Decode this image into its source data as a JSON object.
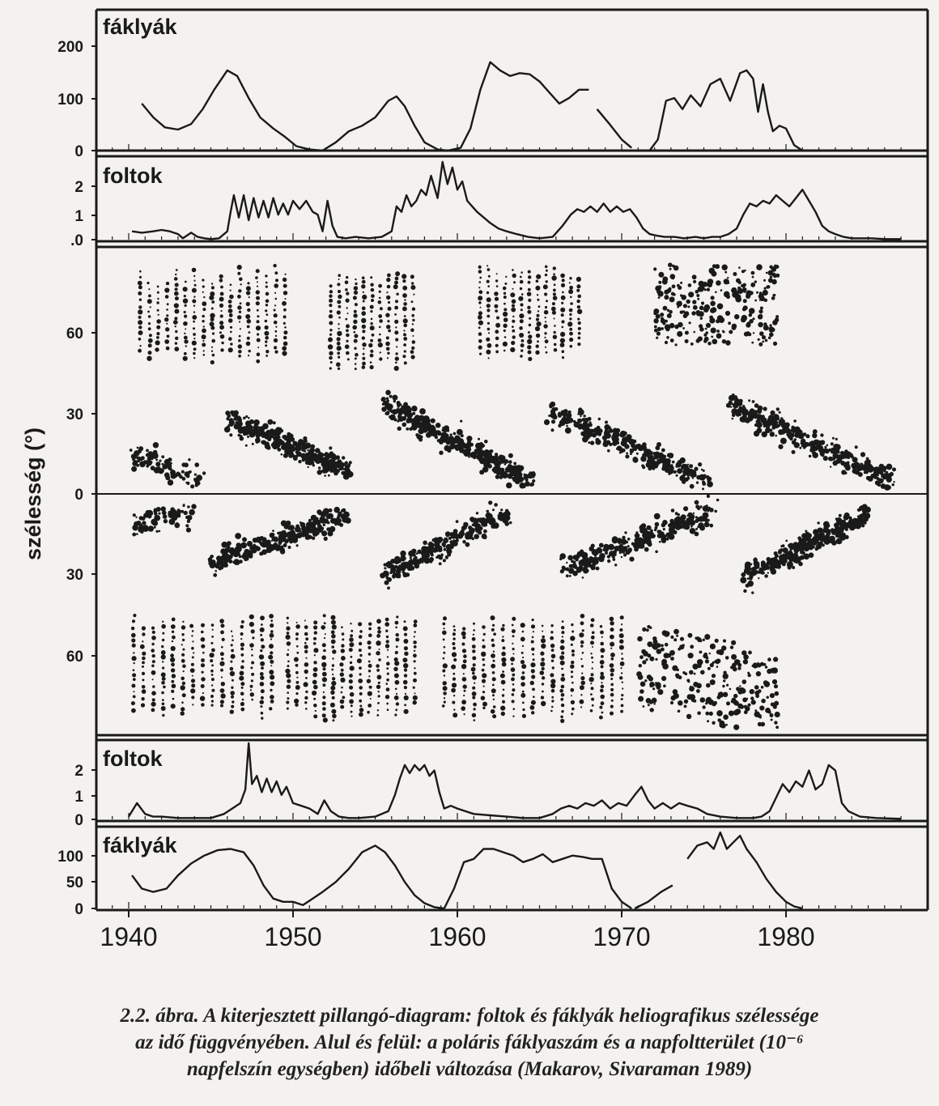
{
  "chart_data": [
    {
      "type": "line",
      "panel": "top",
      "label": "fáklyák",
      "yticks": [
        "200",
        "100",
        "0"
      ],
      "ylim": [
        0,
        240
      ],
      "xlim": [
        1938,
        1988
      ],
      "series": [
        {
          "x": [
            1940.8,
            1941.5,
            1942.2,
            1943,
            1943.8,
            1944.5,
            1945.2,
            1946,
            1946.6,
            1947.3,
            1948,
            1948.8,
            1949.5,
            1950.2,
            1951,
            1951.8
          ],
          "y": [
            85,
            60,
            42,
            38,
            48,
            75,
            110,
            145,
            135,
            95,
            60,
            40,
            25,
            8,
            2,
            0
          ]
        },
        {
          "x": [
            1951.8,
            1952.6,
            1953.4,
            1954.2,
            1955,
            1955.8,
            1956.3,
            1956.8,
            1957.4,
            1958,
            1958.8,
            1959.4
          ],
          "y": [
            0,
            15,
            35,
            45,
            60,
            90,
            98,
            80,
            45,
            15,
            2,
            0
          ]
        },
        {
          "x": [
            1959.4,
            1960.2,
            1960.8,
            1961.4,
            1962,
            1962.6,
            1963.2,
            1963.8,
            1964.4,
            1965,
            1965.6,
            1966.2,
            1966.8,
            1967.4,
            1968
          ],
          "y": [
            0,
            5,
            40,
            110,
            160,
            145,
            135,
            140,
            138,
            125,
            105,
            85,
            95,
            110,
            110
          ]
        },
        {
          "x": [
            1968.5,
            1969.2,
            1970,
            1970.6
          ],
          "y": [
            75,
            50,
            20,
            5
          ]
        },
        {
          "x": [
            1971.7,
            1972.2,
            1972.7,
            1973.2,
            1973.7,
            1974.2,
            1974.8,
            1975.4,
            1976,
            1976.6,
            1977.2,
            1977.6,
            1978,
            1978.3,
            1978.6,
            1978.9,
            1979.2,
            1979.6,
            1980,
            1980.5,
            1981
          ],
          "y": [
            0,
            20,
            90,
            95,
            75,
            100,
            80,
            120,
            130,
            90,
            140,
            145,
            130,
            70,
            120,
            70,
            35,
            45,
            40,
            10,
            0
          ]
        }
      ]
    },
    {
      "type": "line",
      "panel": "upper-middle",
      "label": "foltok",
      "yticks": [
        "2",
        "1",
        ".0"
      ],
      "ylim": [
        0,
        2.8
      ],
      "xlim": [
        1938,
        1988
      ],
      "series": [
        {
          "x": [
            1940.2,
            1940.8,
            1941.5,
            1942,
            1942.5,
            1943,
            1943.3,
            1943.8,
            1944.2,
            1944.6,
            1945,
            1945.5,
            1946,
            1946.2,
            1946.4,
            1946.7,
            1947,
            1947.3,
            1947.6,
            1947.9,
            1948.2,
            1948.5,
            1948.8,
            1949.1,
            1949.4,
            1949.7,
            1950,
            1950.4,
            1950.8,
            1951.2,
            1951.5,
            1951.8,
            1952.1,
            1952.4,
            1952.7,
            1953.2,
            1953.8,
            1954.6,
            1955.4,
            1956,
            1956.3,
            1956.6,
            1956.9,
            1957.2,
            1957.5,
            1957.8,
            1958.1,
            1958.4,
            1958.8,
            1959.1,
            1959.4,
            1959.7,
            1960,
            1960.3,
            1960.6,
            1960.9,
            1961.2,
            1961.6,
            1962,
            1962.5,
            1963,
            1963.6,
            1964.3,
            1965,
            1965.8,
            1966.4,
            1966.9,
            1967.3,
            1967.7,
            1968.1,
            1968.5,
            1968.9,
            1969.3,
            1969.7,
            1970.1,
            1970.5,
            1970.9,
            1971.3,
            1971.7,
            1972.1,
            1972.6,
            1973.2,
            1973.8,
            1974.5,
            1975,
            1975.5,
            1976,
            1976.5,
            1977,
            1977.4,
            1977.8,
            1978.2,
            1978.6,
            1979,
            1979.4,
            1979.8,
            1980.2,
            1980.6,
            1981,
            1981.4,
            1981.8,
            1982.2,
            1982.6,
            1983,
            1983.5,
            1984,
            1984.6,
            1985.2,
            1986,
            1987
          ],
          "y": [
            0.3,
            0.25,
            0.3,
            0.35,
            0.3,
            0.2,
            0.05,
            0.25,
            0.1,
            0.05,
            0.02,
            0.05,
            0.3,
            1.0,
            1.6,
            0.8,
            1.6,
            0.7,
            1.5,
            0.8,
            1.4,
            0.8,
            1.5,
            0.9,
            1.3,
            0.9,
            1.4,
            1.1,
            1.4,
            1.0,
            0.9,
            0.3,
            1.4,
            0.5,
            0.1,
            0.05,
            0.1,
            0.05,
            0.1,
            0.3,
            1.2,
            1.0,
            1.6,
            1.2,
            1.4,
            1.8,
            1.6,
            2.3,
            1.5,
            2.8,
            2.0,
            2.6,
            1.8,
            2.1,
            1.4,
            1.2,
            1.0,
            0.8,
            0.6,
            0.4,
            0.3,
            0.2,
            0.1,
            0.05,
            0.1,
            0.5,
            0.9,
            1.1,
            1.0,
            1.2,
            1.0,
            1.3,
            1.0,
            1.2,
            1.0,
            1.1,
            0.8,
            0.4,
            0.2,
            0.15,
            0.1,
            0.1,
            0.05,
            0.1,
            0.05,
            0.1,
            0.1,
            0.2,
            0.4,
            0.9,
            1.3,
            1.2,
            1.4,
            1.3,
            1.6,
            1.4,
            1.2,
            1.5,
            1.8,
            1.4,
            1.0,
            0.5,
            0.3,
            0.2,
            0.1,
            0.05,
            0.05,
            0.05,
            0.02,
            0.02
          ]
        }
      ]
    },
    {
      "type": "scatter",
      "panel": "butterfly",
      "ylabel": "szélesség (°)",
      "yticks": [
        "60",
        "30",
        "0",
        "30",
        "60"
      ],
      "ylim": [
        -90,
        90
      ],
      "xlim": [
        1938,
        1988
      ],
      "description_free": true
    },
    {
      "type": "line",
      "panel": "lower-middle",
      "label": "foltok",
      "yticks": [
        "2",
        "1",
        "0"
      ],
      "ylim": [
        0,
        2.8
      ],
      "xlim": [
        1938,
        1988
      ],
      "series": [
        {
          "x": [
            1940,
            1940.5,
            1941,
            1941.5,
            1942,
            1943,
            1944,
            1945,
            1945.8,
            1946.3,
            1946.8,
            1947.1,
            1947.3,
            1947.5,
            1947.8,
            1948.1,
            1948.4,
            1948.7,
            1949,
            1949.3,
            1949.6,
            1950,
            1950.5,
            1951,
            1951.5,
            1951.9,
            1952.3,
            1952.8,
            1953.4,
            1954,
            1955,
            1955.8,
            1956.2,
            1956.5,
            1956.8,
            1957.1,
            1957.4,
            1957.7,
            1958,
            1958.3,
            1958.6,
            1958.9,
            1959.2,
            1959.6,
            1960,
            1961,
            1962,
            1963,
            1964,
            1965,
            1965.8,
            1966.3,
            1966.8,
            1967.3,
            1967.8,
            1968.3,
            1968.8,
            1969.3,
            1969.8,
            1970.3,
            1970.8,
            1971.2,
            1971.6,
            1972,
            1972.5,
            1973,
            1973.5,
            1974,
            1974.6,
            1975.2,
            1976,
            1977,
            1978,
            1978.5,
            1979,
            1979.4,
            1979.8,
            1980.2,
            1980.6,
            1981,
            1981.4,
            1981.8,
            1982.2,
            1982.6,
            1983,
            1983.4,
            1983.8,
            1984.5,
            1985.5,
            1987
          ],
          "y": [
            0.1,
            0.6,
            0.2,
            0.1,
            0.1,
            0.05,
            0.05,
            0.05,
            0.2,
            0.4,
            0.6,
            1.1,
            2.8,
            1.3,
            1.6,
            1.0,
            1.5,
            1.0,
            1.4,
            0.9,
            1.2,
            0.6,
            0.5,
            0.4,
            0.2,
            0.7,
            0.3,
            0.1,
            0.05,
            0.05,
            0.1,
            0.3,
            0.9,
            1.5,
            2.0,
            1.7,
            2.0,
            1.8,
            2.0,
            1.6,
            1.8,
            1.0,
            0.4,
            0.5,
            0.4,
            0.2,
            0.15,
            0.1,
            0.05,
            0.05,
            0.2,
            0.4,
            0.5,
            0.4,
            0.6,
            0.5,
            0.7,
            0.4,
            0.6,
            0.5,
            0.9,
            1.2,
            0.7,
            0.4,
            0.6,
            0.4,
            0.6,
            0.5,
            0.4,
            0.2,
            0.1,
            0.05,
            0.05,
            0.1,
            0.3,
            0.8,
            1.3,
            1.0,
            1.4,
            1.2,
            1.8,
            1.1,
            1.3,
            2.0,
            1.8,
            0.6,
            0.3,
            0.1,
            0.05,
            0.02
          ]
        }
      ]
    },
    {
      "type": "line",
      "panel": "bottom",
      "label": "fáklyák",
      "yticks": [
        "100",
        "50",
        "0"
      ],
      "ylim": [
        0,
        120
      ],
      "xlim": [
        1938,
        1988
      ],
      "series": [
        {
          "x": [
            1940.2,
            1940.8,
            1941.5,
            1942.3,
            1943,
            1943.8,
            1944.6,
            1945.4,
            1946.2,
            1947,
            1947.6,
            1948.2,
            1948.8,
            1949.4,
            1950,
            1950.6,
            1951.2,
            1951.8,
            1952.6,
            1953.4,
            1954.2,
            1955,
            1955.6,
            1956.2,
            1956.8,
            1957.4,
            1958,
            1958.6,
            1959.2
          ],
          "y": [
            50,
            30,
            25,
            30,
            50,
            68,
            80,
            88,
            90,
            85,
            65,
            35,
            15,
            10,
            10,
            5,
            15,
            25,
            40,
            60,
            85,
            95,
            85,
            65,
            40,
            20,
            8,
            2,
            0
          ]
        },
        {
          "x": [
            1959.2,
            1959.8,
            1960.4,
            1961,
            1961.6,
            1962.2,
            1962.8,
            1963.4,
            1964,
            1964.6,
            1965.2,
            1965.8,
            1966.4,
            1967,
            1967.6,
            1968.2,
            1968.8,
            1969.4,
            1970,
            1970.6
          ],
          "y": [
            0,
            30,
            70,
            75,
            90,
            90,
            85,
            80,
            70,
            75,
            82,
            70,
            75,
            80,
            78,
            75,
            75,
            30,
            10,
            0
          ]
        },
        {
          "x": [
            1970.8,
            1971.6,
            1972.4,
            1973.1
          ],
          "y": [
            0,
            10,
            25,
            35
          ]
        },
        {
          "x": [
            1974,
            1974.6,
            1975.2,
            1975.6,
            1976,
            1976.4,
            1976.8,
            1977.2,
            1977.6,
            1978.2,
            1978.8,
            1979.4,
            1980,
            1980.5,
            1981
          ],
          "y": [
            75,
            95,
            100,
            90,
            115,
            90,
            100,
            110,
            90,
            70,
            45,
            25,
            10,
            3,
            0
          ]
        }
      ]
    }
  ],
  "xaxis": {
    "ticks": [
      "1940",
      "1950",
      "1960",
      "1970",
      "1980"
    ],
    "values": [
      1940,
      1950,
      1960,
      1970,
      1980
    ]
  },
  "caption": {
    "line1": "2.2. ábra.  A kiterjesztett pillangó-diagram: foltok és fáklyák heliografikus szélessége",
    "line2": "az idő függvényében. Alul és felül: a poláris fáklyaszám és a napfoltterület (10⁻⁶",
    "line3": "napfelszín egységben) időbeli változása (Makarov, Sivaraman 1989)"
  },
  "colors": {
    "ink": "#1a1a1a",
    "paper": "#f4f2ee"
  }
}
